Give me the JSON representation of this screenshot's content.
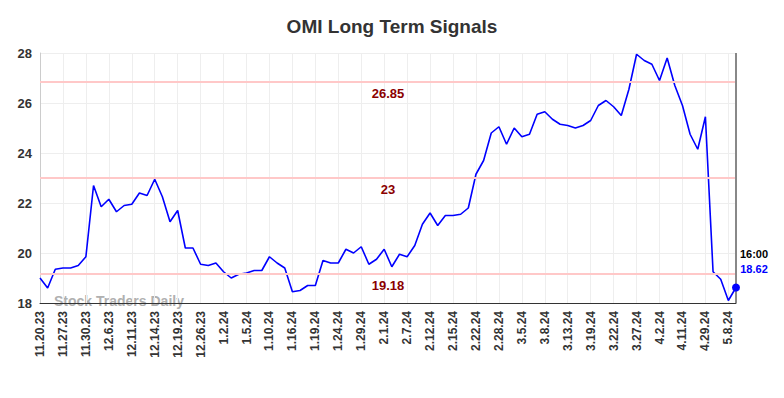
{
  "chart_data": {
    "type": "line",
    "title": "OMI Long Term Signals",
    "watermark": "Stock Traders Daily",
    "last_label": "16:00",
    "color": "#0000ff",
    "grid": true,
    "ylim": [
      18,
      28
    ],
    "yticks": [
      18,
      20,
      22,
      24,
      26,
      28
    ],
    "hlines": [
      26.85,
      23,
      19.18
    ],
    "categories": [
      "11.20.23",
      null,
      null,
      "11.27.23",
      null,
      null,
      "11.30.23",
      null,
      null,
      "12.6.23",
      null,
      null,
      "12.11.23",
      null,
      null,
      "12.14.23",
      null,
      null,
      "12.19.23",
      null,
      null,
      "12.26.23",
      null,
      null,
      "1.2.24",
      null,
      null,
      "1.5.24",
      null,
      null,
      "1.10.24",
      null,
      null,
      "1.16.24",
      null,
      null,
      "1.19.24",
      null,
      null,
      "1.24.24",
      null,
      null,
      "1.29.24",
      null,
      null,
      "2.1.24",
      null,
      null,
      "2.7.24",
      null,
      null,
      "2.12.24",
      null,
      null,
      "2.15.24",
      null,
      null,
      "2.22.24",
      null,
      null,
      "2.28.24",
      null,
      null,
      "3.5.24",
      null,
      null,
      "3.8.24",
      null,
      null,
      "3.13.24",
      null,
      null,
      "3.19.24",
      null,
      null,
      "3.22.24",
      null,
      null,
      "3.27.24",
      null,
      null,
      "4.2.24",
      null,
      null,
      "4.11.24",
      null,
      null,
      "4.29.24",
      null,
      null,
      "5.8.24",
      null
    ],
    "values": [
      19.0,
      18.6,
      19.35,
      19.4,
      19.4,
      19.5,
      19.85,
      22.7,
      21.85,
      22.15,
      21.65,
      21.9,
      21.95,
      22.4,
      22.3,
      22.95,
      22.25,
      21.25,
      21.7,
      20.2,
      20.2,
      19.55,
      19.5,
      19.6,
      19.25,
      19.0,
      19.15,
      19.2,
      19.3,
      19.3,
      19.85,
      19.6,
      19.4,
      18.45,
      18.5,
      18.7,
      18.7,
      19.7,
      19.6,
      19.6,
      20.15,
      20.0,
      20.25,
      19.55,
      19.75,
      20.15,
      19.45,
      19.95,
      19.85,
      20.3,
      21.15,
      21.6,
      21.1,
      21.5,
      21.5,
      21.55,
      21.8,
      23.15,
      23.7,
      24.8,
      25.05,
      24.35,
      25.0,
      24.65,
      24.75,
      25.55,
      25.65,
      25.35,
      25.15,
      25.1,
      25.0,
      25.1,
      25.3,
      25.9,
      26.1,
      25.85,
      25.5,
      26.55,
      27.95,
      27.7,
      27.55,
      26.9,
      27.8,
      26.7,
      25.9,
      24.75,
      24.15,
      25.45,
      19.25,
      18.95,
      18.1,
      18.62
    ]
  }
}
